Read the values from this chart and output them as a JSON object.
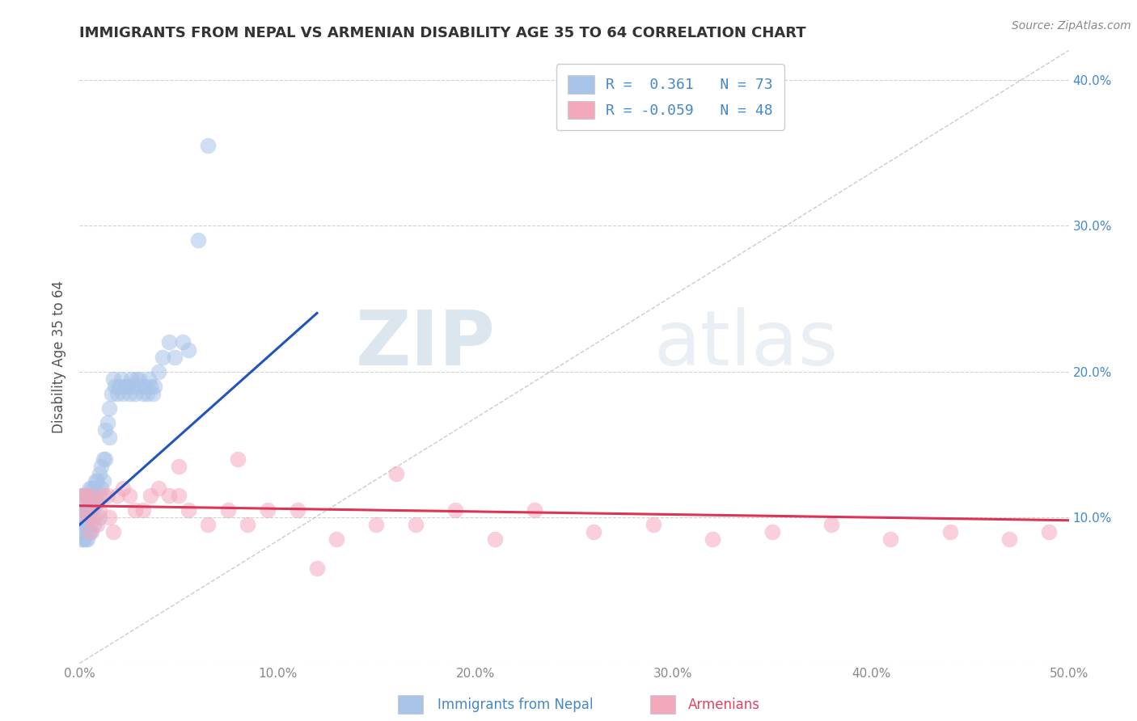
{
  "title": "IMMIGRANTS FROM NEPAL VS ARMENIAN DISABILITY AGE 35 TO 64 CORRELATION CHART",
  "source": "Source: ZipAtlas.com",
  "ylabel": "Disability Age 35 to 64",
  "xlim": [
    0.0,
    0.5
  ],
  "ylim": [
    0.0,
    0.42
  ],
  "xticks": [
    0.0,
    0.1,
    0.2,
    0.3,
    0.4,
    0.5
  ],
  "yticks": [
    0.0,
    0.1,
    0.2,
    0.3,
    0.4
  ],
  "xticklabels": [
    "0.0%",
    "10.0%",
    "20.0%",
    "30.0%",
    "40.0%",
    "50.0%"
  ],
  "yticklabels_right": [
    "",
    "10.0%",
    "20.0%",
    "30.0%",
    "40.0%"
  ],
  "legend_nepal": "Immigrants from Nepal",
  "legend_armenians": "Armenians",
  "R_nepal": "0.361",
  "N_nepal": "73",
  "R_armenian": "-0.059",
  "N_armenian": "48",
  "nepal_color": "#a8c4e8",
  "armenian_color": "#f4a8bc",
  "nepal_line_color": "#2255bb",
  "armenian_line_color": "#dd3355",
  "watermark_zip": "ZIP",
  "watermark_atlas": "atlas",
  "background_color": "#ffffff",
  "grid_color": "#cccccc",
  "title_color": "#444444",
  "axis_color": "#888888",
  "nepal_scatter_x": [
    0.001,
    0.001,
    0.001,
    0.001,
    0.002,
    0.002,
    0.002,
    0.002,
    0.002,
    0.003,
    0.003,
    0.003,
    0.003,
    0.004,
    0.004,
    0.004,
    0.004,
    0.005,
    0.005,
    0.005,
    0.006,
    0.006,
    0.006,
    0.007,
    0.007,
    0.007,
    0.008,
    0.008,
    0.009,
    0.009,
    0.01,
    0.01,
    0.01,
    0.011,
    0.011,
    0.012,
    0.012,
    0.013,
    0.013,
    0.014,
    0.015,
    0.015,
    0.016,
    0.017,
    0.018,
    0.019,
    0.02,
    0.021,
    0.022,
    0.023,
    0.024,
    0.025,
    0.026,
    0.027,
    0.028,
    0.029,
    0.03,
    0.031,
    0.032,
    0.033,
    0.034,
    0.035,
    0.036,
    0.037,
    0.038,
    0.04,
    0.042,
    0.045,
    0.048,
    0.052,
    0.055,
    0.06,
    0.065
  ],
  "nepal_scatter_y": [
    0.115,
    0.105,
    0.095,
    0.085,
    0.115,
    0.105,
    0.095,
    0.09,
    0.085,
    0.115,
    0.105,
    0.095,
    0.085,
    0.115,
    0.105,
    0.095,
    0.085,
    0.12,
    0.105,
    0.09,
    0.12,
    0.105,
    0.09,
    0.12,
    0.11,
    0.095,
    0.125,
    0.11,
    0.125,
    0.11,
    0.13,
    0.115,
    0.1,
    0.135,
    0.12,
    0.14,
    0.125,
    0.16,
    0.14,
    0.165,
    0.175,
    0.155,
    0.185,
    0.195,
    0.19,
    0.185,
    0.19,
    0.195,
    0.185,
    0.19,
    0.19,
    0.185,
    0.195,
    0.19,
    0.185,
    0.195,
    0.195,
    0.19,
    0.185,
    0.19,
    0.185,
    0.195,
    0.19,
    0.185,
    0.19,
    0.2,
    0.21,
    0.22,
    0.21,
    0.22,
    0.215,
    0.29,
    0.355
  ],
  "armenian_scatter_x": [
    0.001,
    0.002,
    0.003,
    0.004,
    0.005,
    0.006,
    0.007,
    0.008,
    0.009,
    0.01,
    0.012,
    0.014,
    0.015,
    0.017,
    0.019,
    0.022,
    0.025,
    0.028,
    0.032,
    0.036,
    0.04,
    0.045,
    0.05,
    0.055,
    0.065,
    0.075,
    0.085,
    0.095,
    0.11,
    0.13,
    0.15,
    0.17,
    0.19,
    0.21,
    0.23,
    0.26,
    0.29,
    0.32,
    0.35,
    0.38,
    0.41,
    0.44,
    0.47,
    0.49,
    0.05,
    0.08,
    0.12,
    0.16
  ],
  "armenian_scatter_y": [
    0.115,
    0.105,
    0.115,
    0.1,
    0.09,
    0.115,
    0.1,
    0.11,
    0.095,
    0.105,
    0.115,
    0.115,
    0.1,
    0.09,
    0.115,
    0.12,
    0.115,
    0.105,
    0.105,
    0.115,
    0.12,
    0.115,
    0.115,
    0.105,
    0.095,
    0.105,
    0.095,
    0.105,
    0.105,
    0.085,
    0.095,
    0.095,
    0.105,
    0.085,
    0.105,
    0.09,
    0.095,
    0.085,
    0.09,
    0.095,
    0.085,
    0.09,
    0.085,
    0.09,
    0.135,
    0.14,
    0.065,
    0.13
  ],
  "nepal_trend_x": [
    0.0,
    0.12
  ],
  "nepal_trend_y": [
    0.095,
    0.24
  ],
  "armenian_trend_x": [
    0.0,
    0.5
  ],
  "armenian_trend_y": [
    0.108,
    0.098
  ]
}
